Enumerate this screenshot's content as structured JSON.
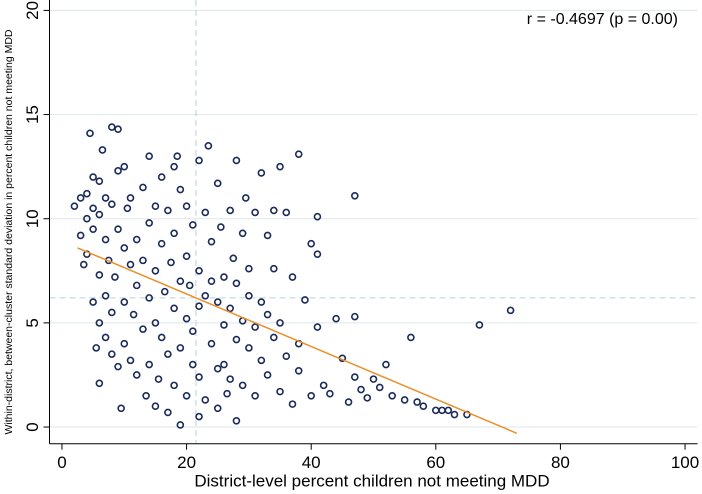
{
  "chart_data": {
    "type": "scatter",
    "x_label": "District-level percent children not meeting MDD",
    "y_label": "Within-district, between-cluster standard deviation in percent children not meeting MDD",
    "annotation": "r = -0.4697 (p = 0.00)",
    "xlim": [
      -2,
      102
    ],
    "ylim": [
      -0.8,
      20.5
    ],
    "xticks": [
      0,
      20,
      40,
      60,
      80,
      100
    ],
    "yticks": [
      0,
      5,
      10,
      15,
      20
    ],
    "grid": true,
    "color": "#1a2a5a",
    "x_reference": 21.5,
    "y_reference": 6.2,
    "fit_line": {
      "color": "#e8902a",
      "x": [
        2.5,
        73
      ],
      "y": [
        8.6,
        -0.3
      ]
    },
    "x": [
      2,
      3,
      3.5,
      3,
      4,
      4,
      4.5,
      4,
      5,
      5,
      5,
      5,
      5.5,
      6,
      6,
      6,
      6,
      6.5,
      6,
      7,
      7,
      7,
      7,
      7.5,
      8,
      8,
      8,
      8,
      8.5,
      9,
      9,
      9,
      9,
      9.5,
      10,
      10,
      10,
      10,
      10.5,
      11,
      11,
      11,
      11.5,
      12,
      12,
      12,
      13,
      13,
      13,
      13.5,
      14,
      14,
      14,
      14,
      15,
      15,
      15,
      15,
      15.5,
      16,
      16,
      16,
      16.5,
      17,
      17,
      17,
      17.5,
      18,
      18,
      18,
      18,
      18.5,
      19,
      19,
      19,
      19,
      20,
      20,
      20,
      20,
      20.5,
      21,
      21,
      21,
      22,
      22,
      22,
      22,
      22,
      23,
      23,
      23,
      23.5,
      24,
      24,
      24,
      25,
      25,
      25,
      25,
      25.5,
      26,
      26,
      26,
      26.5,
      27,
      27,
      27,
      27.5,
      28,
      28,
      28,
      28,
      29,
      29,
      29,
      29.5,
      30,
      30,
      30,
      31,
      31,
      31,
      32,
      32,
      32,
      33,
      33,
      33,
      34,
      34,
      34,
      35,
      35,
      35,
      36,
      36,
      37,
      37,
      38,
      38,
      38,
      39,
      40,
      40,
      41,
      41,
      41,
      42,
      43,
      44,
      45,
      46,
      47,
      47,
      47,
      48,
      49,
      50,
      51,
      52,
      53,
      55,
      56,
      57,
      58,
      60,
      61,
      62,
      63,
      65,
      67,
      72
    ],
    "y": [
      10.6,
      11,
      7.8,
      9.2,
      11.2,
      10,
      14.1,
      8.3,
      10.5,
      12,
      6,
      9.5,
      3.8,
      11.8,
      10.2,
      7.3,
      2.1,
      13.3,
      5,
      9,
      11,
      4.3,
      6.3,
      8,
      14.4,
      10.7,
      3.5,
      5.5,
      7.2,
      14.3,
      12.3,
      9.5,
      2.9,
      0.9,
      12.5,
      8.6,
      6,
      4,
      10.5,
      11,
      7.8,
      3.2,
      5.4,
      9,
      2.5,
      6.8,
      11.5,
      8,
      4.7,
      1.5,
      13,
      9.8,
      6.2,
      3,
      10.6,
      7.5,
      5,
      1,
      2.3,
      12,
      8.8,
      4.3,
      6.5,
      10.4,
      3.5,
      0.7,
      7.9,
      12.5,
      9.3,
      5.7,
      2,
      13,
      11.4,
      7,
      3.8,
      0.1,
      10.6,
      8.2,
      5.2,
      1.5,
      6.8,
      9.7,
      3,
      4.6,
      12.8,
      7.5,
      5.8,
      2.4,
      0.5,
      10.3,
      6.3,
      1.3,
      13.5,
      8.9,
      4,
      7,
      11.7,
      6,
      2.8,
      0.9,
      9.6,
      7.2,
      4.9,
      3,
      1.6,
      10.4,
      5.7,
      2.3,
      8.1,
      12.8,
      6.9,
      4.2,
      0.3,
      9.3,
      5.1,
      2,
      11,
      7.6,
      3.8,
      6.3,
      10.3,
      4.8,
      1.5,
      12.2,
      6,
      3.2,
      9.2,
      5.4,
      2.5,
      10.4,
      4.3,
      7.6,
      12.5,
      5,
      1.7,
      10.3,
      3.4,
      7.2,
      1.1,
      13.1,
      4,
      2.7,
      6.1,
      8.8,
      1.5,
      10.1,
      4.8,
      8.3,
      2,
      1.6,
      5.2,
      3.3,
      1.2,
      11.1,
      5.3,
      2.4,
      1.8,
      1.4,
      2.3,
      1.9,
      3,
      1.5,
      1.3,
      4.3,
      1.2,
      1,
      0.8,
      0.8,
      0.8,
      0.6,
      0.6,
      4.9,
      5.6
    ]
  }
}
